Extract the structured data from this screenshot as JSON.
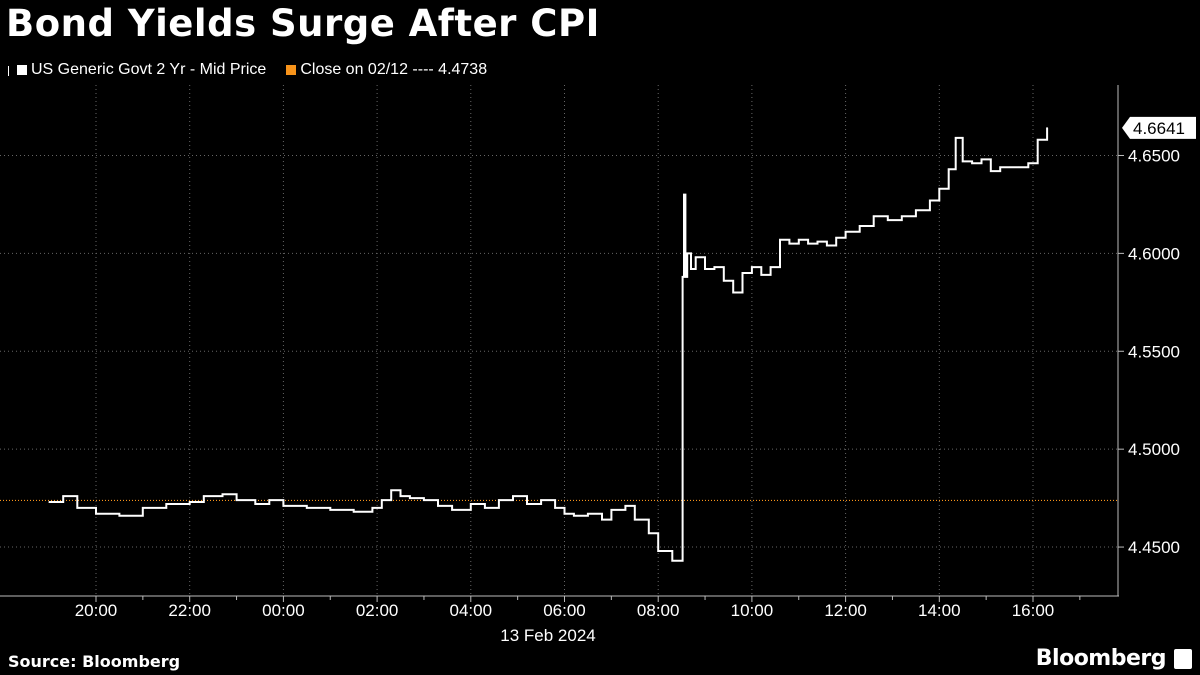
{
  "title": "Bond Yields Surge After CPI",
  "legend": {
    "series_label": "US Generic Govt 2 Yr - Mid Price",
    "close_label": "Close on 02/12 ---- 4.4738"
  },
  "colors": {
    "background": "#000000",
    "series": "#ffffff",
    "close_line": "#f7931a",
    "grid": "#666666"
  },
  "footer": {
    "source": "Source: Bloomberg",
    "brand": "Bloomberg"
  },
  "chart_data": {
    "type": "line",
    "series": [
      {
        "name": "US Generic Govt 2 Yr - Mid Price",
        "x": [
          19.0,
          19.3,
          19.6,
          20.0,
          20.5,
          21.0,
          21.5,
          22.0,
          22.3,
          22.7,
          23.0,
          23.4,
          23.7,
          0.0,
          0.5,
          1.0,
          1.5,
          1.9,
          2.1,
          2.3,
          2.5,
          2.7,
          3.0,
          3.3,
          3.6,
          4.0,
          4.3,
          4.6,
          4.9,
          5.2,
          5.5,
          5.8,
          6.0,
          6.2,
          6.5,
          6.8,
          7.0,
          7.3,
          7.5,
          7.8,
          8.0,
          8.3,
          8.5,
          8.52,
          8.55,
          8.58,
          8.62,
          8.7,
          8.8,
          9.0,
          9.2,
          9.4,
          9.6,
          9.8,
          10.0,
          10.2,
          10.4,
          10.6,
          10.8,
          11.0,
          11.2,
          11.4,
          11.6,
          11.8,
          12.0,
          12.3,
          12.6,
          12.9,
          13.2,
          13.5,
          13.8,
          14.0,
          14.2,
          14.35,
          14.5,
          14.7,
          14.9,
          15.1,
          15.3,
          15.5,
          15.7,
          15.9,
          16.1,
          16.3
        ],
        "y": [
          4.473,
          4.476,
          4.47,
          4.467,
          4.466,
          4.47,
          4.472,
          4.473,
          4.476,
          4.477,
          4.474,
          4.472,
          4.474,
          4.471,
          4.47,
          4.469,
          4.468,
          4.47,
          4.474,
          4.479,
          4.476,
          4.475,
          4.474,
          4.471,
          4.469,
          4.472,
          4.47,
          4.474,
          4.476,
          4.472,
          4.474,
          4.47,
          4.467,
          4.466,
          4.467,
          4.464,
          4.469,
          4.471,
          4.464,
          4.457,
          4.448,
          4.443,
          4.443,
          4.588,
          4.63,
          4.588,
          4.6,
          4.592,
          4.598,
          4.592,
          4.593,
          4.586,
          4.58,
          4.59,
          4.593,
          4.589,
          4.593,
          4.607,
          4.605,
          4.607,
          4.605,
          4.606,
          4.604,
          4.608,
          4.611,
          4.614,
          4.619,
          4.617,
          4.619,
          4.622,
          4.627,
          4.633,
          4.643,
          4.659,
          4.647,
          4.646,
          4.648,
          4.642,
          4.644,
          4.644,
          4.644,
          4.646,
          4.658,
          4.6641
        ]
      }
    ],
    "reference_line": {
      "label": "Close on 02/12",
      "value": 4.4738
    },
    "last_value_label": "4.6641",
    "xlabel": "13 Feb 2024",
    "x_ticks": [
      {
        "label": "20:00",
        "value": 20
      },
      {
        "label": "22:00",
        "value": 22
      },
      {
        "label": "00:00",
        "value": 24
      },
      {
        "label": "02:00",
        "value": 26
      },
      {
        "label": "04:00",
        "value": 28
      },
      {
        "label": "06:00",
        "value": 30
      },
      {
        "label": "08:00",
        "value": 32
      },
      {
        "label": "10:00",
        "value": 34
      },
      {
        "label": "12:00",
        "value": 36
      },
      {
        "label": "14:00",
        "value": 38
      },
      {
        "label": "16:00",
        "value": 40
      }
    ],
    "y_ticks": [
      "4.4500",
      "4.5000",
      "4.5500",
      "4.6000",
      "4.6500"
    ],
    "ylim": [
      4.425,
      4.686
    ],
    "grid": true,
    "legend_position": "top-left"
  }
}
